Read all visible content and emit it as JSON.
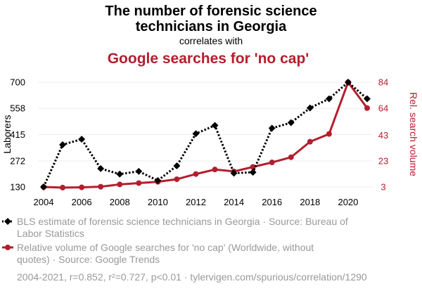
{
  "chart_data": {
    "type": "line",
    "title_line1": "The number of forensic science",
    "title_line2": "technicians in Georgia",
    "connector": "correlates with",
    "title2": "Google searches for 'no cap'",
    "x": [
      2004,
      2005,
      2006,
      2007,
      2008,
      2009,
      2010,
      2011,
      2012,
      2013,
      2014,
      2015,
      2016,
      2017,
      2018,
      2019,
      2020,
      2021
    ],
    "x_ticks": [
      2004,
      2006,
      2008,
      2010,
      2012,
      2014,
      2016,
      2018,
      2020
    ],
    "y_left": {
      "label": "Laborers",
      "ticks": [
        130,
        272,
        415,
        558,
        700
      ],
      "range": [
        130,
        700
      ]
    },
    "y_right": {
      "label": "Rel. search volume",
      "ticks": [
        3,
        23,
        43,
        64,
        84
      ],
      "range": [
        3,
        84
      ]
    },
    "series": [
      {
        "name": "BLS estimate of forensic science technicians in Georgia",
        "axis": "left",
        "color": "#000000",
        "style": "dotted",
        "marker": "diamond",
        "values": [
          130,
          360,
          390,
          230,
          200,
          215,
          165,
          245,
          420,
          465,
          205,
          210,
          450,
          480,
          560,
          610,
          700,
          610
        ]
      },
      {
        "name": "Relative volume of Google searches for 'no cap'",
        "axis": "right",
        "color": "#b31e2e",
        "style": "solid",
        "marker": "circle",
        "values": [
          3,
          2.5,
          2.7,
          3.2,
          5,
          6,
          7,
          9,
          13,
          16.5,
          15,
          18.5,
          22,
          26,
          38,
          44,
          84,
          64
        ]
      }
    ],
    "legend": [
      {
        "line1": "BLS estimate of forensic science technicians in Georgia · Source: Bureau of",
        "line2": "Labor Statistics"
      },
      {
        "line1": "Relative volume of Google searches for 'no cap' (Worldwide, without",
        "line2": "quotes) · Source: Google Trends"
      }
    ],
    "footer": "2004-2021, r=0.852, r²=0.727, p<0.01 · tylervigen.com/spurious/correlation/1290",
    "grid": "horizontal",
    "legend_placement": "bottom"
  }
}
